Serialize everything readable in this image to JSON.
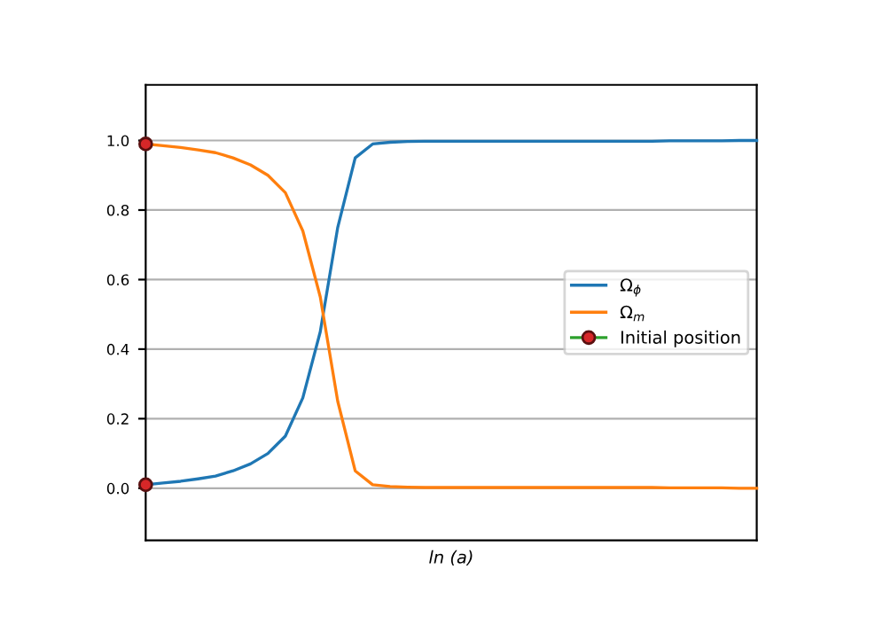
{
  "chart_data": {
    "type": "line",
    "xlabel": "ln (a)",
    "categories": [
      null,
      null,
      null,
      null,
      null,
      null,
      null,
      null,
      null,
      null,
      null,
      null,
      null,
      null,
      null,
      null,
      null,
      null,
      null,
      null,
      null,
      null,
      null,
      null,
      null,
      null,
      null,
      null,
      null,
      null,
      null,
      null,
      null,
      null,
      null,
      null
    ],
    "ylim": [
      -0.15,
      1.16
    ],
    "yticks": [
      {
        "value": 0,
        "label": "0.0"
      },
      0.2,
      0.4,
      0.6,
      0.8,
      {
        "value": 1,
        "label": "1.0"
      }
    ],
    "grid": "y",
    "legend": "right",
    "series": [
      {
        "name": "Ω$_{ϕ}$",
        "color": "#1f77b4",
        "values": [
          0.01,
          0.015,
          0.02,
          0.027,
          0.035,
          0.05,
          0.07,
          0.1,
          0.15,
          0.26,
          0.45,
          0.75,
          0.95,
          0.99,
          0.995,
          0.997,
          0.998,
          0.998,
          0.998,
          0.998,
          0.998,
          0.998,
          0.998,
          0.998,
          0.998,
          0.998,
          0.998,
          0.998,
          0.998,
          0.998,
          0.999,
          0.999,
          0.999,
          0.999,
          1.0,
          1.0
        ]
      },
      {
        "name": "Ω$_{m}$",
        "color": "#ff7f0e",
        "values": [
          0.99,
          0.985,
          0.98,
          0.973,
          0.965,
          0.95,
          0.93,
          0.9,
          0.85,
          0.74,
          0.55,
          0.25,
          0.05,
          0.01,
          0.005,
          0.003,
          0.002,
          0.002,
          0.002,
          0.002,
          0.002,
          0.002,
          0.002,
          0.002,
          0.002,
          0.002,
          0.002,
          0.002,
          0.002,
          0.002,
          0.001,
          0.001,
          0.001,
          0.001,
          0.0,
          0.0
        ]
      },
      {
        "name": "Initial position",
        "color": "#2ca02c",
        "marker": "circle",
        "colors": [
          "#d62728",
          null,
          null,
          null,
          null,
          null,
          null,
          null,
          null,
          null,
          null,
          null,
          null,
          null,
          null,
          null,
          null,
          null,
          null,
          null,
          null,
          null,
          null,
          null,
          null,
          null,
          null,
          null,
          null,
          null,
          null,
          null,
          null,
          null,
          null,
          null
        ],
        "values": [
          0.99,
          null,
          null,
          null,
          null,
          null,
          null,
          null,
          null,
          null,
          null,
          null,
          null,
          null,
          null,
          null,
          null,
          null,
          null,
          null,
          null,
          null,
          null,
          null,
          null,
          null,
          null,
          null,
          null,
          null,
          null,
          null,
          null,
          null,
          null,
          null
        ]
      },
      {
        "color": "#2ca02c",
        "marker": "circle",
        "colors": [
          "#d62728",
          null,
          null,
          null,
          null,
          null,
          null,
          null,
          null,
          null,
          null,
          null,
          null,
          null,
          null,
          null,
          null,
          null,
          null,
          null,
          null,
          null,
          null,
          null,
          null,
          null,
          null,
          null,
          null,
          null,
          null,
          null,
          null,
          null,
          null,
          null
        ],
        "values": [
          0.01,
          null,
          null,
          null,
          null,
          null,
          null,
          null,
          null,
          null,
          null,
          null,
          null,
          null,
          null,
          null,
          null,
          null,
          null,
          null,
          null,
          null,
          null,
          null,
          null,
          null,
          null,
          null,
          null,
          null,
          null,
          null,
          null,
          null,
          null,
          null
        ]
      }
    ]
  }
}
